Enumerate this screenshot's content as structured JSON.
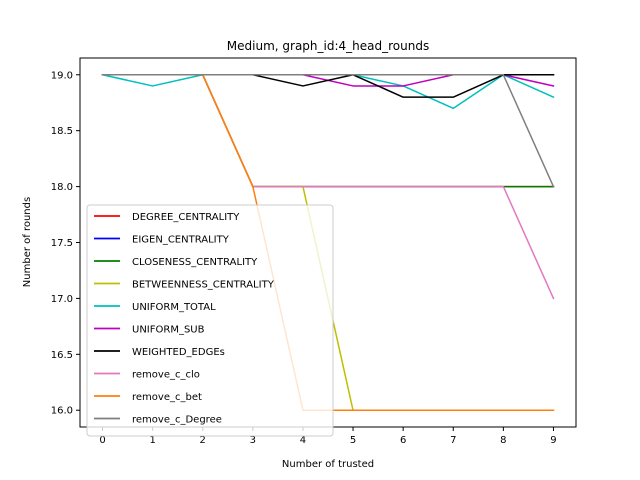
{
  "chart_data": {
    "type": "line",
    "title": "Medium, graph_id:4_head_rounds",
    "xlabel": "Number of trusted",
    "ylabel": "Number of rounds",
    "x": [
      0,
      1,
      2,
      3,
      4,
      5,
      6,
      7,
      8,
      9
    ],
    "xlim": [
      -0.45,
      9.45
    ],
    "ylim": [
      15.85,
      19.15
    ],
    "xticks": [
      "0",
      "1",
      "2",
      "3",
      "4",
      "5",
      "6",
      "7",
      "8",
      "9"
    ],
    "yticks": [
      "16.0",
      "16.5",
      "17.0",
      "17.5",
      "18.0",
      "18.5",
      "19.0"
    ],
    "grid": false,
    "legend_position": "center-left",
    "series": [
      {
        "name": "DEGREE_CENTRALITY",
        "color": "#ff0000",
        "values": [
          19,
          19,
          19,
          18,
          18,
          18,
          18,
          18,
          18,
          18
        ]
      },
      {
        "name": "EIGEN_CENTRALITY",
        "color": "#0000ff",
        "values": [
          19,
          19,
          19,
          19,
          19,
          19,
          19,
          19,
          19,
          19
        ]
      },
      {
        "name": "CLOSENESS_CENTRALITY",
        "color": "#008000",
        "values": [
          19,
          19,
          19,
          18,
          18,
          18,
          18,
          18,
          18,
          18
        ]
      },
      {
        "name": "BETWEENNESS_CENTRALITY",
        "color": "#bfbf00",
        "values": [
          19,
          19,
          19,
          18,
          18,
          16,
          16,
          16,
          16,
          16
        ]
      },
      {
        "name": "UNIFORM_TOTAL",
        "color": "#00bfbf",
        "values": [
          19,
          18.9,
          19,
          19,
          19,
          19,
          18.9,
          18.7,
          19,
          18.8
        ]
      },
      {
        "name": "UNIFORM_SUB",
        "color": "#bf00bf",
        "values": [
          19,
          19,
          19,
          19,
          19,
          18.9,
          18.9,
          19,
          19,
          18.9
        ]
      },
      {
        "name": "WEIGHTED_EDGEs",
        "color": "#000000",
        "values": [
          19,
          19,
          19,
          19,
          18.9,
          19,
          18.8,
          18.8,
          19,
          19
        ]
      },
      {
        "name": "remove_c_clo",
        "color": "#e377c2",
        "values": [
          19,
          19,
          19,
          18,
          18,
          18,
          18,
          18,
          18,
          17
        ]
      },
      {
        "name": "remove_c_bet",
        "color": "#ff7f0e",
        "values": [
          19,
          19,
          19,
          18,
          16,
          16,
          16,
          16,
          16,
          16
        ]
      },
      {
        "name": "remove_c_Degree",
        "color": "#7f7f7f",
        "values": [
          19,
          19,
          19,
          19,
          19,
          19,
          19,
          19,
          19,
          18
        ]
      }
    ]
  }
}
